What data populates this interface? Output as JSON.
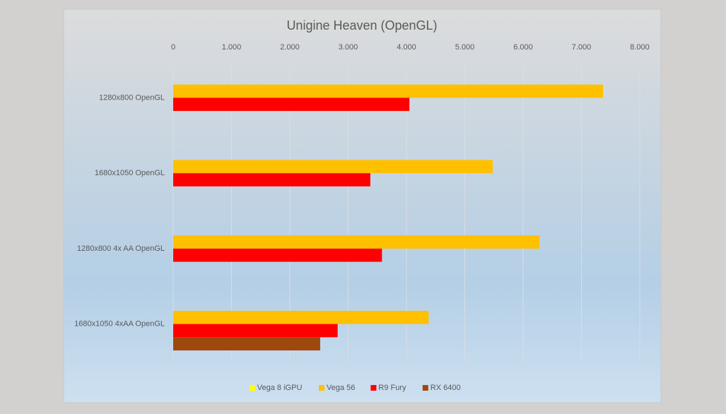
{
  "chart_data": {
    "type": "bar",
    "orientation": "horizontal",
    "title": "Unigine Heaven (OpenGL)",
    "categories": [
      "1280x800 OpenGL",
      "1680x1050 OpenGL",
      "1280x800 4x AA OpenGL",
      "1680x1050 4xAA OpenGL"
    ],
    "series": [
      {
        "name": "Vega 8 iGPU",
        "color": "#ffff00",
        "values": [
          null,
          null,
          null,
          null
        ]
      },
      {
        "name": "Vega 56",
        "color": "#ffc000",
        "values": [
          7370,
          5480,
          6280,
          4380
        ]
      },
      {
        "name": "R9 Fury",
        "color": "#ff0000",
        "values": [
          4050,
          3380,
          3580,
          2820
        ]
      },
      {
        "name": "RX 6400",
        "color": "#9e480e",
        "values": [
          null,
          null,
          null,
          2520
        ]
      }
    ],
    "xlim": [
      0,
      8000
    ],
    "xticks": [
      0,
      {
        "value": 1000,
        "label": "1.000"
      },
      {
        "value": 2000,
        "label": "2.000"
      },
      {
        "value": 3000,
        "label": "3.000"
      },
      {
        "value": 4000,
        "label": "4.000"
      },
      {
        "value": 5000,
        "label": "5.000"
      },
      {
        "value": 6000,
        "label": "6.000"
      },
      {
        "value": 7000,
        "label": "7.000"
      },
      {
        "value": 8000,
        "label": "8.000"
      }
    ],
    "grid": true,
    "legend": "bottom"
  }
}
